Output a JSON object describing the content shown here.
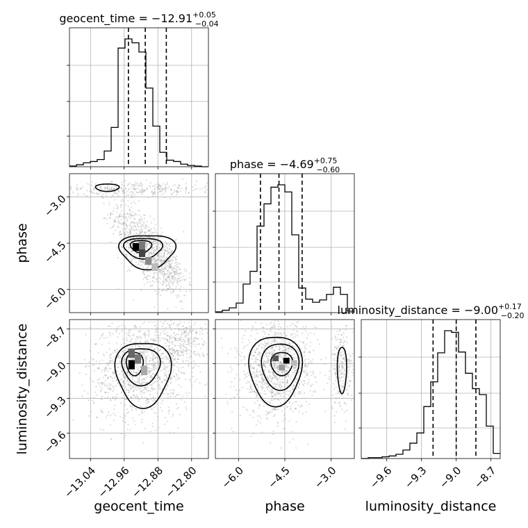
{
  "chart_data": {
    "type": "corner",
    "parameters": [
      "geocent_time",
      "phase",
      "luminosity_distance"
    ],
    "axis_labels": {
      "geocent_time": "geocent_time",
      "phase": "phase",
      "luminosity_distance": "luminosity_distance"
    },
    "ranges": {
      "geocent_time": [
        -13.09,
        -12.76
      ],
      "phase": [
        -6.75,
        -2.25
      ],
      "luminosity_distance": [
        -9.82,
        -8.62
      ]
    },
    "ticks": {
      "geocent_time": [
        -13.04,
        -12.96,
        -12.88,
        -12.8
      ],
      "phase": [
        -6.0,
        -4.5,
        -3.0
      ],
      "luminosity_distance": [
        -9.6,
        -9.3,
        -9.0,
        -8.7
      ]
    },
    "tick_labels": {
      "geocent_time": [
        "−13.04",
        "−12.96",
        "−12.88",
        "−12.80"
      ],
      "phase": [
        "−6.0",
        "−4.5",
        "−3.0"
      ],
      "luminosity_distance": [
        "−9.6",
        "−9.3",
        "−9.0",
        "−8.7"
      ]
    },
    "titles": [
      {
        "param": "geocent_time",
        "name": "geocent_time",
        "median": "−12.91",
        "plus": "+0.05",
        "minus": "−0.04"
      },
      {
        "param": "phase",
        "name": "phase",
        "median": "−4.69",
        "plus": "+0.75",
        "minus": "−0.60"
      },
      {
        "param": "luminosity_distance",
        "name": "luminosity_distance",
        "median": "−9.00",
        "plus": "+0.17",
        "minus": "−0.20"
      }
    ],
    "quantiles": {
      "geocent_time": [
        -12.95,
        -12.91,
        -12.86
      ],
      "phase": [
        -5.29,
        -4.69,
        -3.94
      ],
      "luminosity_distance": [
        -9.2,
        -9.0,
        -8.83
      ]
    },
    "histograms": {
      "geocent_time": {
        "edges_range": [
          -13.09,
          -12.76
        ],
        "counts": [
          1,
          3,
          6,
          8,
          11,
          24,
          60,
          181,
          195,
          189,
          175,
          120,
          62,
          22,
          10,
          8,
          4,
          2,
          1,
          0
        ]
      },
      "phase": {
        "edges_range": [
          -6.75,
          -2.25
        ],
        "counts": [
          1,
          3,
          6,
          12,
          36,
          52,
          109,
          137,
          158,
          161,
          152,
          98,
          31,
          17,
          13,
          16,
          23,
          32,
          23,
          2
        ]
      },
      "luminosity_distance": {
        "edges_range": [
          -9.82,
          -8.62
        ],
        "counts": [
          0,
          1,
          1,
          2,
          3,
          5,
          10,
          18,
          30,
          61,
          90,
          124,
          150,
          148,
          125,
          100,
          82,
          75,
          38,
          6
        ]
      }
    },
    "grid": true
  }
}
